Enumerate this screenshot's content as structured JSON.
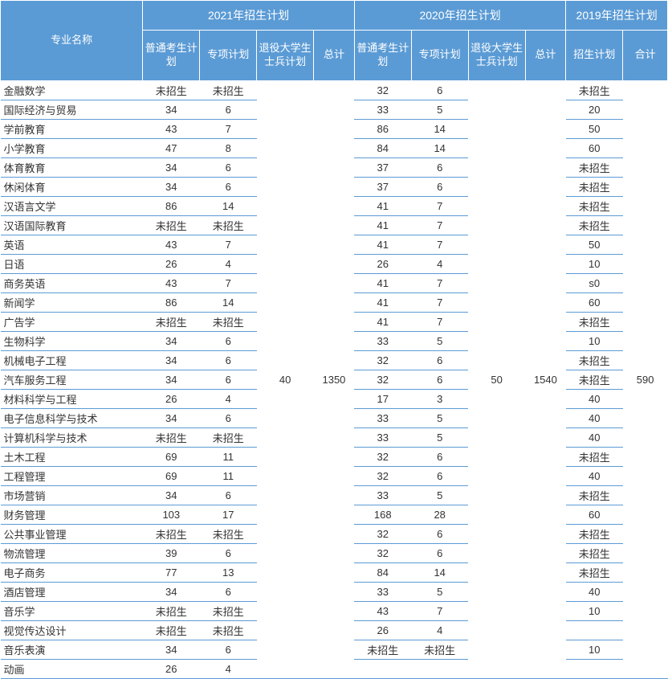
{
  "colors": {
    "header_bg": "#5b9bd5",
    "header_text": "#ffffff",
    "cell_border": "#5b9bd5",
    "cell_bg": "#ffffff",
    "cell_text": "#333333"
  },
  "headers": {
    "major": "专业名称",
    "group_2021": "2021年招生计划",
    "group_2020": "2020年招生计划",
    "group_2019": "2019年招生计划",
    "sub_regular": "普通考生计划",
    "sub_special": "专项计划",
    "sub_veteran": "退役大学生士兵计划",
    "sub_total": "总计",
    "sub_plan": "招生计划",
    "sub_sum": "合计"
  },
  "merged_values": {
    "veteran_2021": "40",
    "total_2021": "1350",
    "veteran_2020": "50",
    "total_2020": "1540",
    "sum_2019": "590"
  },
  "rows": [
    {
      "major": "金融数学",
      "r21": "未招生",
      "s21": "未招生",
      "r20": "32",
      "s20": "6",
      "p19": "未招生"
    },
    {
      "major": "国际经济与贸易",
      "r21": "34",
      "s21": "6",
      "r20": "33",
      "s20": "5",
      "p19": "20"
    },
    {
      "major": "学前教育",
      "r21": "43",
      "s21": "7",
      "r20": "86",
      "s20": "14",
      "p19": "50"
    },
    {
      "major": "小学教育",
      "r21": "47",
      "s21": "8",
      "r20": "84",
      "s20": "14",
      "p19": "60"
    },
    {
      "major": "体育教育",
      "r21": "34",
      "s21": "6",
      "r20": "37",
      "s20": "6",
      "p19": "未招生"
    },
    {
      "major": "休闲体育",
      "r21": "34",
      "s21": "6",
      "r20": "37",
      "s20": "6",
      "p19": "未招生"
    },
    {
      "major": "汉语言文学",
      "r21": "86",
      "s21": "14",
      "r20": "41",
      "s20": "7",
      "p19": "未招生"
    },
    {
      "major": "汉语国际教育",
      "r21": "未招生",
      "s21": "未招生",
      "r20": "41",
      "s20": "7",
      "p19": "未招生"
    },
    {
      "major": "英语",
      "r21": "43",
      "s21": "7",
      "r20": "41",
      "s20": "7",
      "p19": "50"
    },
    {
      "major": "日语",
      "r21": "26",
      "s21": "4",
      "r20": "26",
      "s20": "4",
      "p19": "10"
    },
    {
      "major": "商务英语",
      "r21": "43",
      "s21": "7",
      "r20": "41",
      "s20": "7",
      "p19": "s0"
    },
    {
      "major": "新闻学",
      "r21": "86",
      "s21": "14",
      "r20": "41",
      "s20": "7",
      "p19": "60"
    },
    {
      "major": "广告学",
      "r21": "未招生",
      "s21": "未招生",
      "r20": "41",
      "s20": "7",
      "p19": "未招生"
    },
    {
      "major": "生物科学",
      "r21": "34",
      "s21": "6",
      "r20": "33",
      "s20": "5",
      "p19": "10"
    },
    {
      "major": "机械电子工程",
      "r21": "34",
      "s21": "6",
      "r20": "32",
      "s20": "6",
      "p19": "未招生"
    },
    {
      "major": "汽车服务工程",
      "r21": "34",
      "s21": "6",
      "r20": "32",
      "s20": "6",
      "p19": "未招生"
    },
    {
      "major": "材料科学与工程",
      "r21": "26",
      "s21": "4",
      "r20": "17",
      "s20": "3",
      "p19": "40"
    },
    {
      "major": "电子信息科学与技术",
      "r21": "34",
      "s21": "6",
      "r20": "33",
      "s20": "5",
      "p19": "40"
    },
    {
      "major": "计算机科学与技术",
      "r21": "未招生",
      "s21": "未招生",
      "r20": "33",
      "s20": "5",
      "p19": "40"
    },
    {
      "major": "土木工程",
      "r21": "69",
      "s21": "11",
      "r20": "32",
      "s20": "6",
      "p19": "未招生"
    },
    {
      "major": "工程管理",
      "r21": "69",
      "s21": "11",
      "r20": "32",
      "s20": "6",
      "p19": "40"
    },
    {
      "major": "市场营销",
      "r21": "34",
      "s21": "6",
      "r20": "33",
      "s20": "5",
      "p19": "未招生"
    },
    {
      "major": "财务管理",
      "r21": "103",
      "s21": "17",
      "r20": "168",
      "s20": "28",
      "p19": "60"
    },
    {
      "major": "公共事业管理",
      "r21": "未招生",
      "s21": "未招生",
      "r20": "32",
      "s20": "6",
      "p19": "未招生"
    },
    {
      "major": "物流管理",
      "r21": "39",
      "s21": "6",
      "r20": "32",
      "s20": "6",
      "p19": "未招生"
    },
    {
      "major": "电子商务",
      "r21": "77",
      "s21": "13",
      "r20": "84",
      "s20": "14",
      "p19": "未招生"
    },
    {
      "major": "酒店管理",
      "r21": "34",
      "s21": "6",
      "r20": "33",
      "s20": "5",
      "p19": "40"
    },
    {
      "major": "音乐学",
      "r21": "未招生",
      "s21": "未招生",
      "r20": "43",
      "s20": "7",
      "p19": "10"
    },
    {
      "major": "视觉传达设计",
      "r21": "未招生",
      "s21": "未招生",
      "r20": "26",
      "s20": "4",
      "p19": ""
    },
    {
      "major": "音乐表演",
      "r21": "34",
      "s21": "6",
      "r20": "未招生",
      "s20": "未招生",
      "p19": "10"
    },
    {
      "major": "动画",
      "r21": "26",
      "s21": "4",
      "r20": "",
      "s20": "",
      "p19": ""
    }
  ]
}
